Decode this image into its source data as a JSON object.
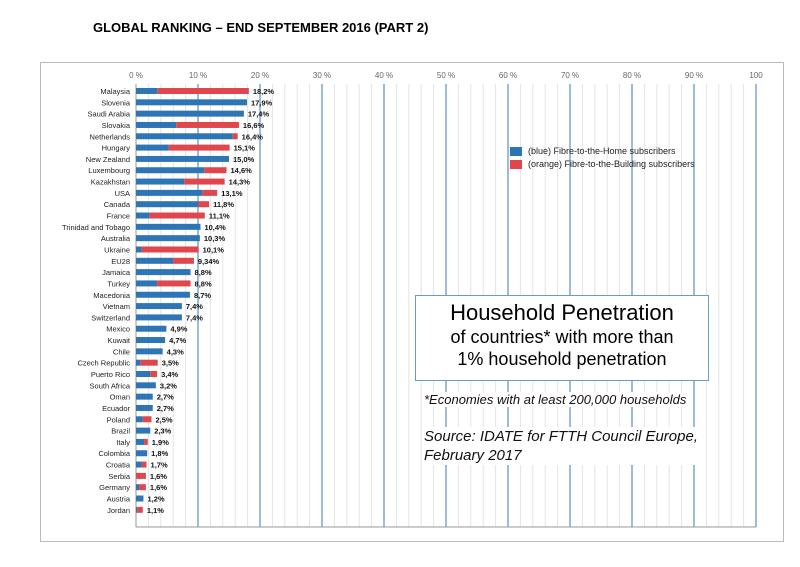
{
  "title": "GLOBAL RANKING – END SEPTEMBER 2016 (PART 2)",
  "chart_data": {
    "type": "bar",
    "orientation": "horizontal",
    "stacked": true,
    "xlim": [
      0,
      100
    ],
    "x_ticks": [
      "0 %",
      "10 %",
      "20 %",
      "30 %",
      "40 %",
      "50 %",
      "60 %",
      "70 %",
      "80 %",
      "90 %",
      "100"
    ],
    "grid": true,
    "legend_placement": "top-right",
    "legend": [
      "(blue) Fibre-to-the-Home subscribers",
      "(orange) Fibre-to-the-Building subscribers"
    ],
    "colors": {
      "ftth": "#2e75b6",
      "fttb": "#e0474c"
    },
    "categories": [
      "Malaysia",
      "Slovenia",
      "Saudi Arabia",
      "Slovakia",
      "Netherlands",
      "Hungary",
      "New Zealand",
      "Luxembourg",
      "Kazakhstan",
      "USA",
      "Canada",
      "France",
      "Trinidad and Tobago",
      "Australia",
      "Ukraine",
      "EU28",
      "Jamaica",
      "Turkey",
      "Macedonia",
      "Vietnam",
      "Switzerland",
      "Mexico",
      "Kuwait",
      "Chile",
      "Czech Republic",
      "Puerto Rico",
      "South Africa",
      "Oman",
      "Ecuador",
      "Poland",
      "Brazil",
      "Italy",
      "Colombia",
      "Croatia",
      "Serbia",
      "Germany",
      "Austria",
      "Jordan"
    ],
    "totals": [
      18.2,
      17.9,
      17.4,
      16.6,
      16.4,
      15.1,
      15.0,
      14.6,
      14.3,
      13.1,
      11.8,
      11.1,
      10.4,
      10.3,
      10.1,
      9.34,
      8.8,
      8.8,
      8.7,
      7.4,
      7.4,
      4.9,
      4.7,
      4.3,
      3.5,
      3.4,
      3.2,
      2.7,
      2.7,
      2.5,
      2.3,
      1.9,
      1.8,
      1.7,
      1.6,
      1.6,
      1.2,
      1.1
    ],
    "total_labels": [
      "18,2%",
      "17,9%",
      "17,4%",
      "16,6%",
      "16,4%",
      "15,1%",
      "15,0%",
      "14,6%",
      "14,3%",
      "13,1%",
      "11,8%",
      "11,1%",
      "10,4%",
      "10,3%",
      "10,1%",
      "9,34%",
      "8,8%",
      "8,8%",
      "8,7%",
      "7,4%",
      "7,4%",
      "4,9%",
      "4,7%",
      "4,3%",
      "3,5%",
      "3,4%",
      "3,2%",
      "2,7%",
      "2,7%",
      "2,5%",
      "2,3%",
      "1,9%",
      "1,8%",
      "1,7%",
      "1,6%",
      "1,6%",
      "1,2%",
      "1,1%"
    ],
    "ftth": [
      3.5,
      17.9,
      17.4,
      6.5,
      15.6,
      5.3,
      15.0,
      11.0,
      7.8,
      10.7,
      10.0,
      2.2,
      10.4,
      10.3,
      0.9,
      6.0,
      8.8,
      3.4,
      8.7,
      7.4,
      7.4,
      4.9,
      4.7,
      4.3,
      0.7,
      2.3,
      3.2,
      2.7,
      2.7,
      1.1,
      2.3,
      1.3,
      1.8,
      0.9,
      0,
      0.5,
      1.2,
      0.2
    ]
  },
  "annotation": {
    "heading": "Household Penetration",
    "line1": "of countries* with more than",
    "line2": "1% household penetration",
    "footnote": "*Economies with at least 200,000 households",
    "source1": "Source: IDATE for FTTH Council Europe,",
    "source2": "February 2017"
  }
}
